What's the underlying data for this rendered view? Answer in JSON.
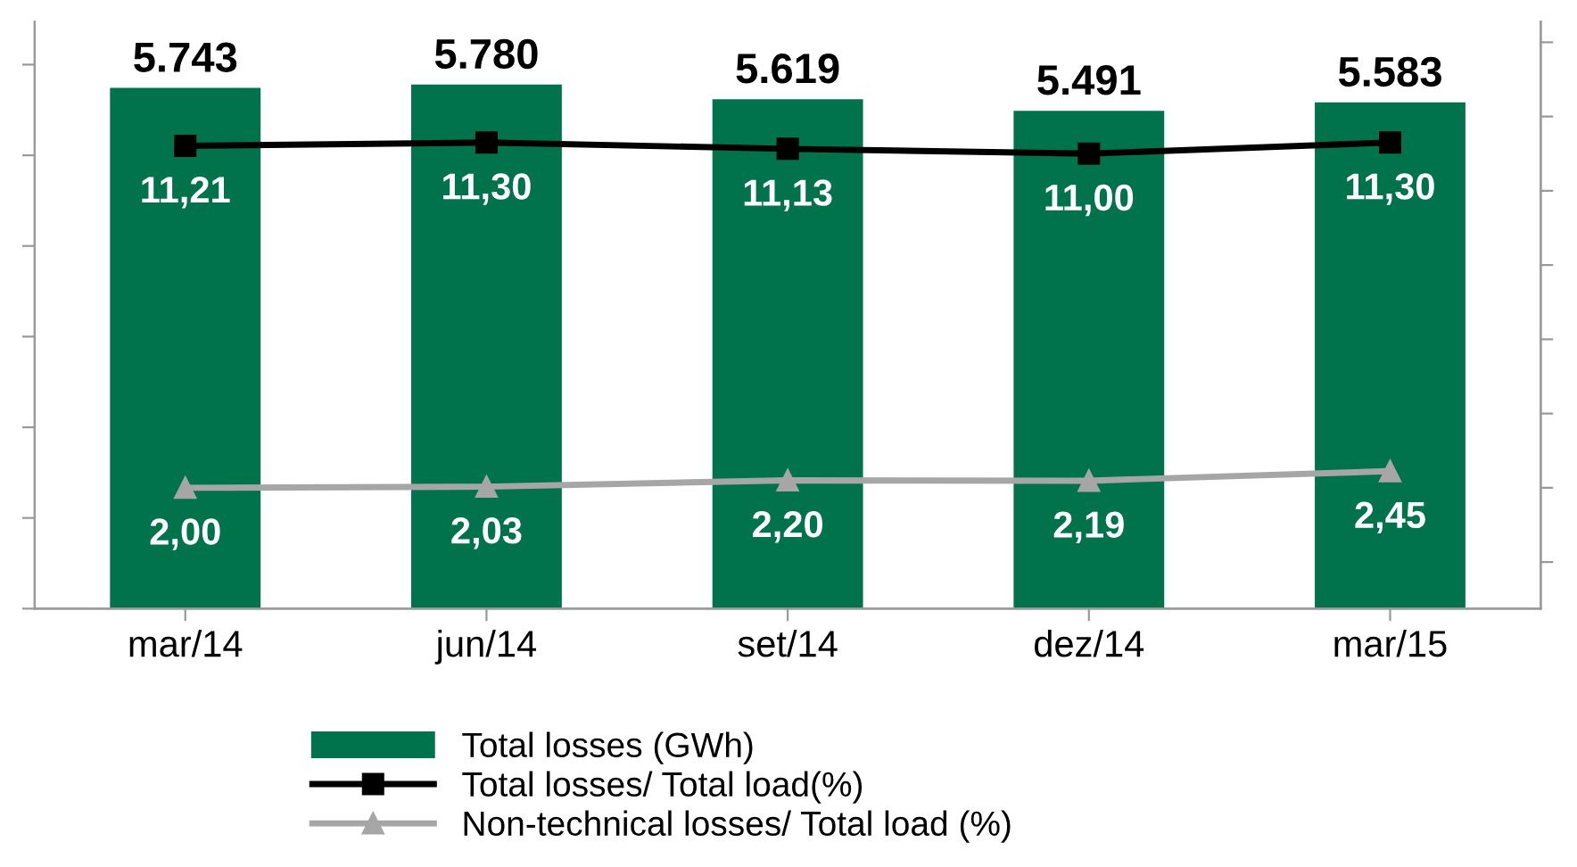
{
  "chart_data": {
    "type": "bar",
    "categories": [
      "mar/14",
      "jun/14",
      "set/14",
      "dez/14",
      "mar/15"
    ],
    "series": [
      {
        "name": "Total losses (GWh)",
        "color": "#00734d",
        "values": [
          5743,
          5780,
          5619,
          5491,
          5583
        ],
        "value_labels": [
          "5.743",
          "5.780",
          "5.619",
          "5.491",
          "5.583"
        ]
      },
      {
        "name": "Total losses/ Total load(%)",
        "type": "line",
        "axis": "y2",
        "color": "#000000",
        "marker": "square",
        "values": [
          11.21,
          11.3,
          11.13,
          11.0,
          11.3
        ],
        "value_labels": [
          "11,21",
          "11,30",
          "11,13",
          "11,00",
          "11,30"
        ]
      },
      {
        "name": "Non-technical losses/ Total load (%)",
        "type": "line",
        "axis": "y2",
        "color": "#a6a6a6",
        "marker": "triangle",
        "values": [
          2.0,
          2.03,
          2.2,
          2.19,
          2.45
        ],
        "value_labels": [
          "2,00",
          "2,03",
          "2,20",
          "2,19",
          "2,45"
        ]
      }
    ],
    "tick_labels": "x",
    "legend": "bottom",
    "line_style": "solid"
  }
}
